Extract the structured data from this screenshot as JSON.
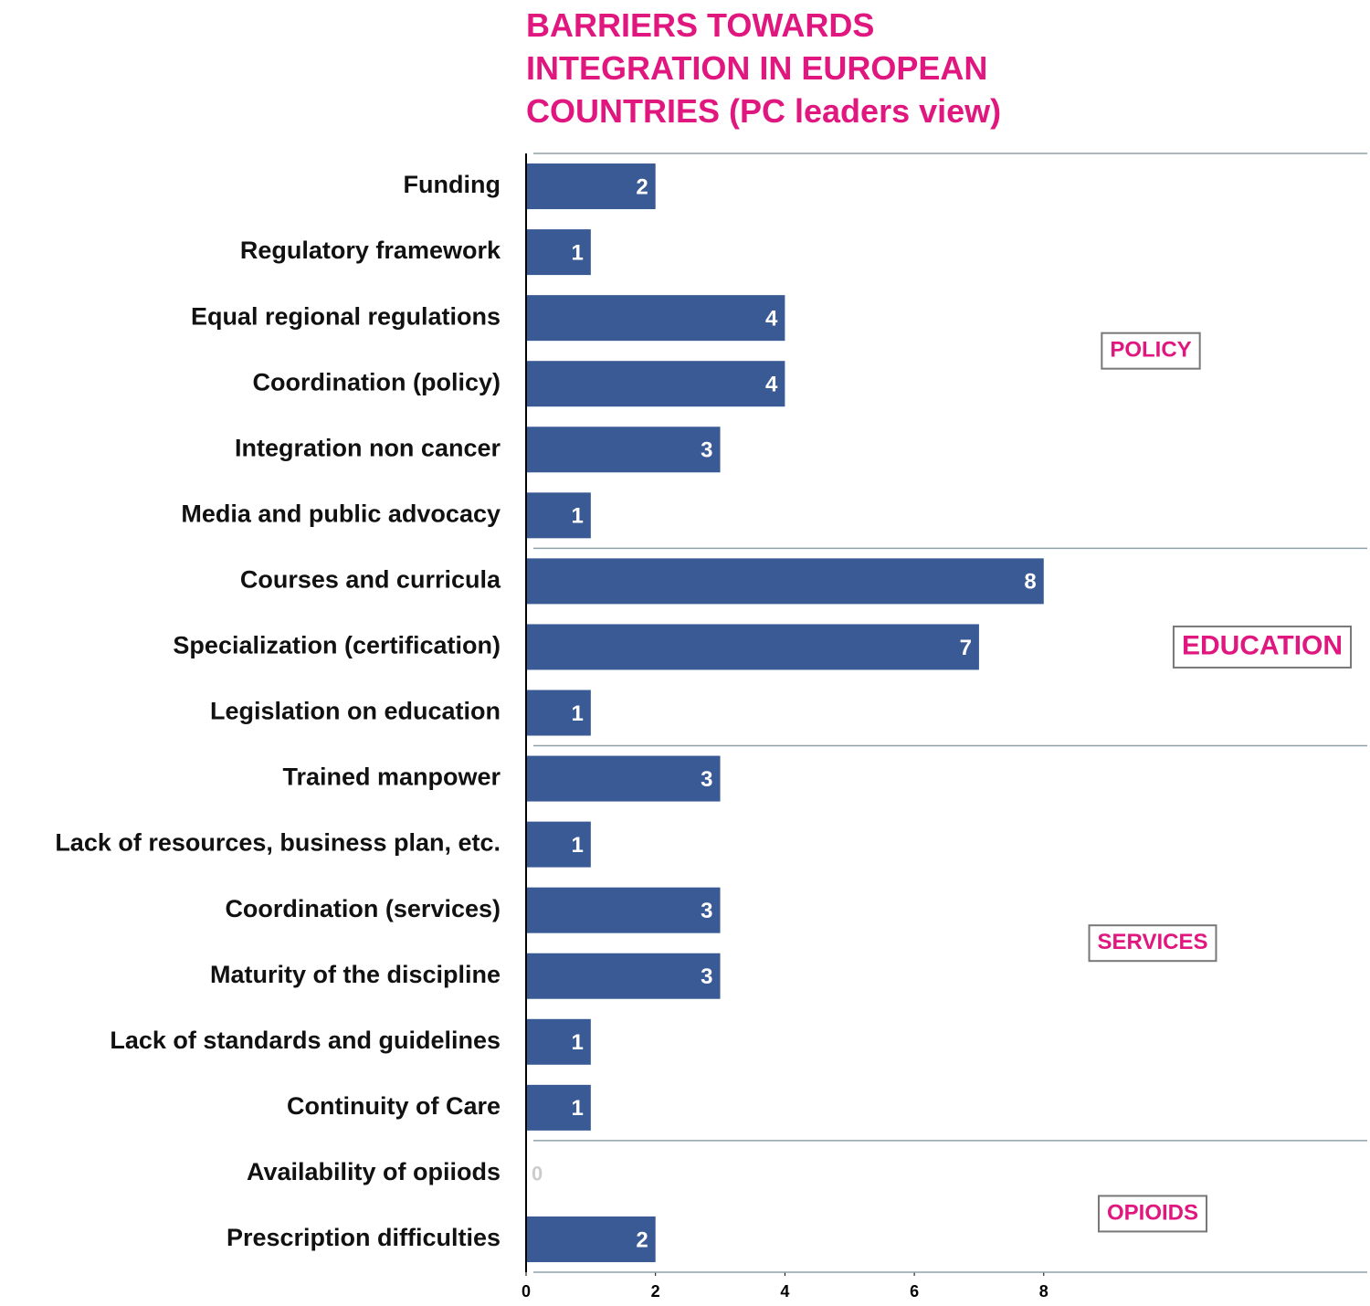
{
  "chart_data": {
    "type": "bar",
    "orientation": "horizontal",
    "title": "BARRIERS TOWARDS INTEGRATION IN EUROPEAN COUNTRIES (PC leaders view)",
    "color": "#3a5a96",
    "groups": [
      {
        "label": "POLICY",
        "categories": [
          "Funding",
          "Regulatory framework",
          "Equal regional regulations",
          "Coordination (policy)",
          "Integration non cancer",
          "Media and public advocacy"
        ],
        "values": [
          2,
          1,
          4,
          4,
          3,
          1
        ]
      },
      {
        "label": "EDUCATION",
        "categories": [
          "Courses and curricula",
          "Specialization (certification)",
          "Legislation on education"
        ],
        "values": [
          8,
          7,
          1
        ]
      },
      {
        "label": "SERVICES",
        "categories": [
          "Trained manpower",
          "Lack of resources, business plan, etc.",
          "Coordination (services)",
          "Maturity of the discipline",
          "Lack of standards and guidelines",
          "Continuity of Care"
        ],
        "values": [
          3,
          1,
          3,
          3,
          1,
          1
        ]
      },
      {
        "label": "OPIOIDS",
        "categories": [
          "Availability of opiiods",
          "Prescription difficulties"
        ],
        "values": [
          0,
          2
        ]
      }
    ],
    "xlim": [
      0,
      13
    ],
    "xticks": [
      0,
      2,
      4,
      6,
      8
    ]
  }
}
